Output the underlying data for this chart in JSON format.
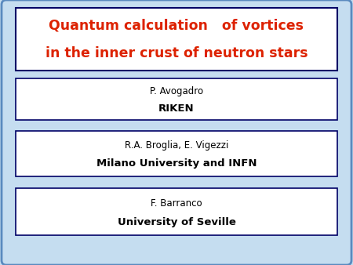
{
  "bg_color": "#c5ddf0",
  "title_line1": "Quantum calculation   of vortices",
  "title_line2": "in the inner crust of neutron stars",
  "title_color": "#dd2200",
  "title_box_bg": "#ffffff",
  "title_box_edge": "#000066",
  "boxes": [
    {
      "name_line": "P. Avogadro",
      "inst_line": "RIKEN"
    },
    {
      "name_line": "R.A. Broglia, E. Vigezzi",
      "inst_line": "Milano University and INFN"
    },
    {
      "name_line": "F. Barranco",
      "inst_line": "University of Seville"
    }
  ],
  "box_bg": "#ffffff",
  "box_edge": "#000066",
  "name_fontsize": 8.5,
  "inst_fontsize": 9.5,
  "title_fontsize": 12.5,
  "outer_edge_color": "#5a8abf",
  "outer_edge_width": 2.0
}
